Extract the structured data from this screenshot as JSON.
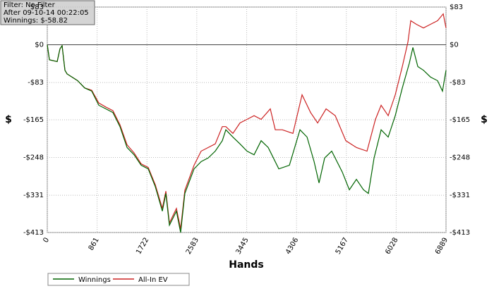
{
  "info_box": {
    "lines": [
      "Filter: No Filter",
      "After 09-10-14 00:22:05",
      "Winnings: $-58.82"
    ]
  },
  "chart_data": {
    "type": "line",
    "x_label": "Hands",
    "y_label": "$",
    "grid": true,
    "legend": "bottom-left",
    "xlim": [
      0,
      6889
    ],
    "xticks": [
      0,
      861,
      1722,
      2583,
      3445,
      4306,
      5167,
      6028,
      6889
    ],
    "ylim": [
      -413,
      83
    ],
    "yticks": [
      {
        "value": 83,
        "label": "$83"
      },
      {
        "value": 0,
        "label": "$0"
      },
      {
        "value": -83,
        "label": "-$83"
      },
      {
        "value": -165,
        "label": "-$165"
      },
      {
        "value": -248,
        "label": "-$248"
      },
      {
        "value": -331,
        "label": "-$331"
      },
      {
        "value": -413,
        "label": "-$413"
      }
    ],
    "series": [
      {
        "name": "Winnings",
        "color": "#006400",
        "x": [
          0,
          37,
          171,
          219,
          256,
          305,
          341,
          524,
          646,
          768,
          890,
          1012,
          1134,
          1256,
          1317,
          1378,
          1500,
          1622,
          1744,
          1866,
          1988,
          2049,
          2110,
          2231,
          2304,
          2377,
          2536,
          2658,
          2780,
          2902,
          3024,
          3085,
          3207,
          3329,
          3451,
          3573,
          3695,
          3817,
          4000,
          4183,
          4366,
          4488,
          4610,
          4695,
          4792,
          4914,
          5097,
          5219,
          5341,
          5463,
          5548,
          5646,
          5768,
          5890,
          6012,
          6134,
          6256,
          6317,
          6402,
          6499,
          6621,
          6743,
          6828,
          6889
        ],
        "values": [
          0,
          -33,
          -37,
          -9,
          -2,
          -56,
          -64,
          -79,
          -95,
          -102,
          -133,
          -141,
          -149,
          -180,
          -203,
          -226,
          -242,
          -265,
          -273,
          -312,
          -366,
          -327,
          -397,
          -366,
          -413,
          -327,
          -273,
          -257,
          -249,
          -234,
          -211,
          -187,
          -203,
          -218,
          -234,
          -242,
          -211,
          -226,
          -273,
          -265,
          -187,
          -203,
          -257,
          -304,
          -249,
          -234,
          -280,
          -319,
          -296,
          -319,
          -327,
          -249,
          -187,
          -203,
          -156,
          -95,
          -40,
          -6,
          -48,
          -56,
          -71,
          -79,
          -102,
          -56
        ]
      },
      {
        "name": "All-In EV",
        "color": "#cc2222",
        "x": [
          0,
          37,
          171,
          219,
          256,
          305,
          341,
          524,
          646,
          768,
          890,
          1012,
          1134,
          1256,
          1317,
          1378,
          1500,
          1622,
          1744,
          1866,
          1988,
          2049,
          2110,
          2231,
          2304,
          2377,
          2536,
          2658,
          2780,
          2902,
          3024,
          3085,
          3207,
          3329,
          3451,
          3573,
          3695,
          3853,
          3939,
          4061,
          4244,
          4402,
          4549,
          4671,
          4817,
          4975,
          5158,
          5341,
          5524,
          5670,
          5768,
          5890,
          6012,
          6134,
          6231,
          6280,
          6377,
          6499,
          6621,
          6743,
          6841,
          6889
        ],
        "values": [
          0,
          -33,
          -37,
          -9,
          -2,
          -56,
          -64,
          -79,
          -95,
          -100,
          -128,
          -137,
          -145,
          -176,
          -198,
          -220,
          -238,
          -262,
          -270,
          -308,
          -360,
          -322,
          -392,
          -360,
          -405,
          -320,
          -265,
          -234,
          -226,
          -218,
          -180,
          -180,
          -195,
          -172,
          -164,
          -156,
          -164,
          -141,
          -187,
          -187,
          -195,
          -110,
          -149,
          -172,
          -141,
          -156,
          -211,
          -226,
          -234,
          -164,
          -133,
          -156,
          -110,
          -48,
          6,
          53,
          45,
          37,
          45,
          53,
          68,
          37
        ]
      }
    ]
  }
}
